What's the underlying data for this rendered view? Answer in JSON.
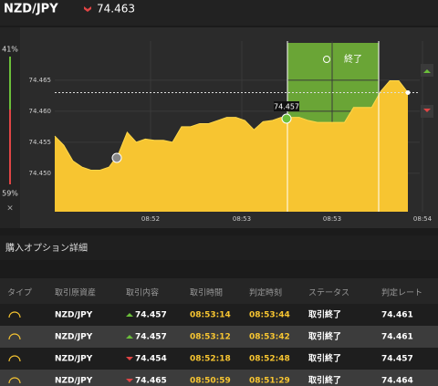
{
  "header": {
    "symbol": "NZD/JPY",
    "price": "74.463"
  },
  "sidebar": {
    "up": "41%",
    "down": "59%",
    "close": "×"
  },
  "chart_data": {
    "type": "area",
    "color": "#f7c531",
    "values": [
      74.456,
      74.4545,
      74.452,
      74.451,
      74.4505,
      74.4505,
      74.451,
      74.453,
      74.4566,
      74.455,
      74.4555,
      74.4553,
      74.4553,
      74.455,
      74.4575,
      74.4575,
      74.458,
      74.458,
      74.4585,
      74.459,
      74.459,
      74.4585,
      74.457,
      74.4583,
      74.4585,
      74.459,
      74.459,
      74.459,
      74.4585,
      74.4582,
      74.4582,
      74.4582,
      74.4582,
      74.4606,
      74.4606,
      74.4606,
      74.4632,
      74.4649,
      74.4649,
      74.463
    ],
    "ylim": [
      74.4438,
      74.4713
    ],
    "yticks": [
      74.465,
      {
        "value": 74.46,
        "label": "74.460"
      },
      74.455,
      {
        "value": 74.45,
        "label": "74.450"
      }
    ],
    "xtick_labels": [
      "08:52",
      "08:53",
      "08:53",
      "08:54"
    ],
    "expiry_label": "終了",
    "entry_label": "74.457"
  },
  "section_title": "購入オプション詳細",
  "table": {
    "headers": [
      "タイプ",
      "取引原資産",
      "取引内容",
      "取引時間",
      "判定時刻",
      "ステータス",
      "判定レート"
    ],
    "rows": [
      [
        "NZD/JPY",
        "74.457",
        "08:53:14",
        "08:53:44",
        "取引終了",
        "74.461"
      ],
      [
        "NZD/JPY",
        "74.457",
        "08:53:12",
        "08:53:42",
        "取引終了",
        "74.461"
      ],
      [
        "NZD/JPY",
        "74.454",
        "08:52:18",
        "08:52:48",
        "取引終了",
        "74.457"
      ],
      [
        "NZD/JPY",
        "74.465",
        "08:50:59",
        "08:51:29",
        "取引終了",
        "74.464"
      ]
    ]
  }
}
